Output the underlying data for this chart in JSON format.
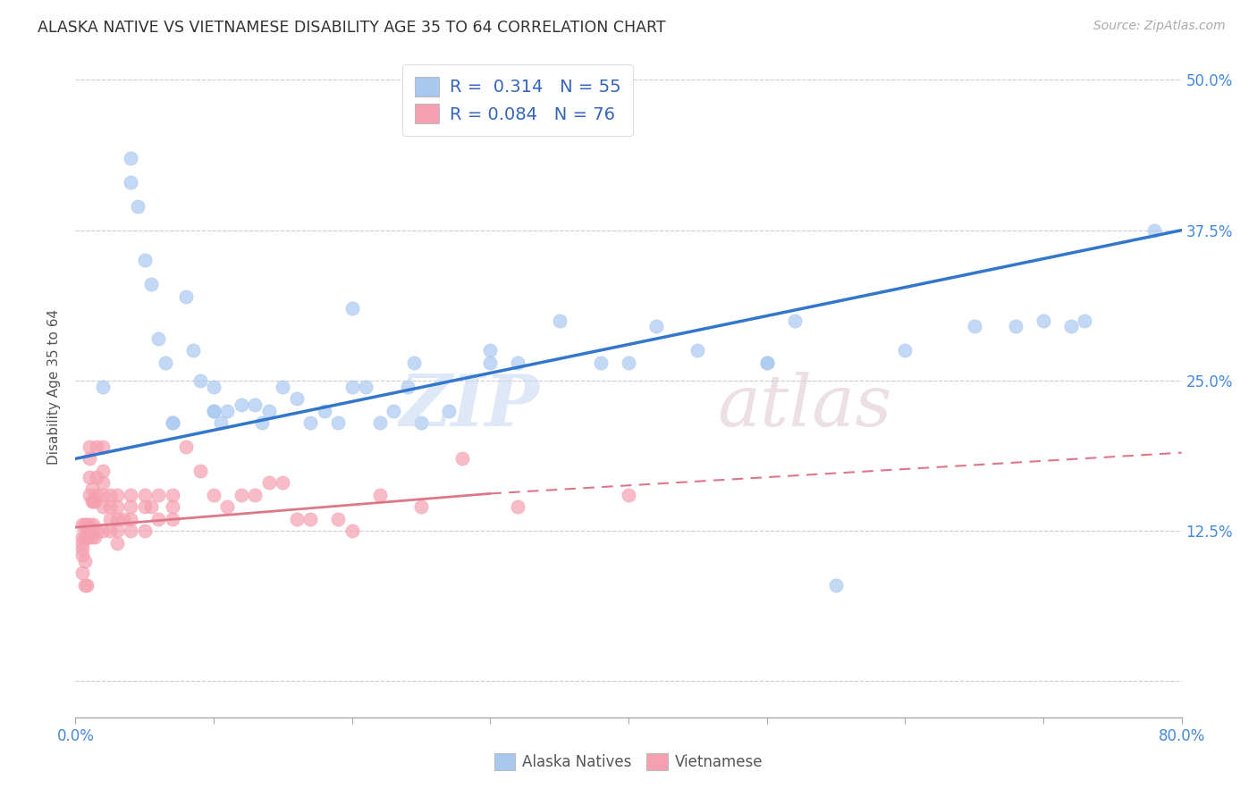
{
  "title": "ALASKA NATIVE VS VIETNAMESE DISABILITY AGE 35 TO 64 CORRELATION CHART",
  "source": "Source: ZipAtlas.com",
  "ylabel": "Disability Age 35 to 64",
  "xlim": [
    0.0,
    0.8
  ],
  "ylim": [
    -0.03,
    0.52
  ],
  "alaska_color": "#a8c8f0",
  "vietnamese_color": "#f5a0b0",
  "trendline_alaska_color": "#3377cc",
  "trendline_vietnamese_color": "#dd7788",
  "legend_R_alaska": "0.314",
  "legend_N_alaska": "55",
  "legend_R_vietnamese": "0.084",
  "legend_N_vietnamese": "76",
  "alaska_x": [
    0.02,
    0.04,
    0.04,
    0.045,
    0.05,
    0.055,
    0.06,
    0.065,
    0.07,
    0.08,
    0.085,
    0.09,
    0.1,
    0.1,
    0.105,
    0.11,
    0.12,
    0.13,
    0.135,
    0.14,
    0.15,
    0.16,
    0.17,
    0.18,
    0.19,
    0.2,
    0.21,
    0.22,
    0.23,
    0.24,
    0.245,
    0.25,
    0.27,
    0.3,
    0.32,
    0.35,
    0.38,
    0.4,
    0.42,
    0.45,
    0.5,
    0.52,
    0.55,
    0.6,
    0.65,
    0.68,
    0.7,
    0.72,
    0.73,
    0.78,
    0.5,
    0.3,
    0.2,
    0.1,
    0.07
  ],
  "alaska_y": [
    0.245,
    0.435,
    0.415,
    0.395,
    0.35,
    0.33,
    0.285,
    0.265,
    0.215,
    0.32,
    0.275,
    0.25,
    0.245,
    0.225,
    0.215,
    0.225,
    0.23,
    0.23,
    0.215,
    0.225,
    0.245,
    0.235,
    0.215,
    0.225,
    0.215,
    0.245,
    0.245,
    0.215,
    0.225,
    0.245,
    0.265,
    0.215,
    0.225,
    0.275,
    0.265,
    0.3,
    0.265,
    0.265,
    0.295,
    0.275,
    0.265,
    0.3,
    0.08,
    0.275,
    0.295,
    0.295,
    0.3,
    0.295,
    0.3,
    0.375,
    0.265,
    0.265,
    0.31,
    0.225,
    0.215
  ],
  "vietnamese_x": [
    0.005,
    0.005,
    0.005,
    0.005,
    0.005,
    0.005,
    0.007,
    0.007,
    0.007,
    0.007,
    0.008,
    0.008,
    0.008,
    0.01,
    0.01,
    0.01,
    0.01,
    0.01,
    0.01,
    0.012,
    0.012,
    0.012,
    0.013,
    0.013,
    0.014,
    0.014,
    0.015,
    0.015,
    0.015,
    0.015,
    0.02,
    0.02,
    0.02,
    0.02,
    0.02,
    0.02,
    0.025,
    0.025,
    0.025,
    0.025,
    0.03,
    0.03,
    0.03,
    0.03,
    0.03,
    0.035,
    0.04,
    0.04,
    0.04,
    0.04,
    0.05,
    0.05,
    0.05,
    0.055,
    0.06,
    0.06,
    0.07,
    0.07,
    0.07,
    0.08,
    0.09,
    0.1,
    0.11,
    0.12,
    0.13,
    0.14,
    0.15,
    0.16,
    0.17,
    0.19,
    0.2,
    0.22,
    0.25,
    0.28,
    0.32,
    0.4
  ],
  "vietnamese_y": [
    0.13,
    0.12,
    0.115,
    0.11,
    0.105,
    0.09,
    0.13,
    0.12,
    0.1,
    0.08,
    0.13,
    0.12,
    0.08,
    0.195,
    0.185,
    0.17,
    0.155,
    0.13,
    0.12,
    0.16,
    0.15,
    0.12,
    0.15,
    0.13,
    0.15,
    0.12,
    0.195,
    0.17,
    0.155,
    0.125,
    0.195,
    0.175,
    0.165,
    0.155,
    0.145,
    0.125,
    0.155,
    0.145,
    0.135,
    0.125,
    0.155,
    0.145,
    0.135,
    0.125,
    0.115,
    0.135,
    0.155,
    0.145,
    0.135,
    0.125,
    0.155,
    0.145,
    0.125,
    0.145,
    0.155,
    0.135,
    0.155,
    0.145,
    0.135,
    0.195,
    0.175,
    0.155,
    0.145,
    0.155,
    0.155,
    0.165,
    0.165,
    0.135,
    0.135,
    0.135,
    0.125,
    0.155,
    0.145,
    0.185,
    0.145,
    0.155
  ],
  "trend_alaska_x0": 0.0,
  "trend_alaska_y0": 0.185,
  "trend_alaska_x1": 0.8,
  "trend_alaska_y1": 0.375,
  "trend_viet_x0": 0.0,
  "trend_viet_y0": 0.128,
  "trend_viet_x1": 0.8,
  "trend_viet_y1": 0.19,
  "trend_viet_dash_x0": 0.3,
  "trend_viet_dash_y0": 0.156,
  "trend_viet_dash_x1": 0.8,
  "trend_viet_dash_y1": 0.19,
  "ytick_positions": [
    0.0,
    0.125,
    0.25,
    0.375,
    0.5
  ],
  "yticklabels_right": [
    "",
    "12.5%",
    "25.0%",
    "37.5%",
    "50.0%"
  ]
}
